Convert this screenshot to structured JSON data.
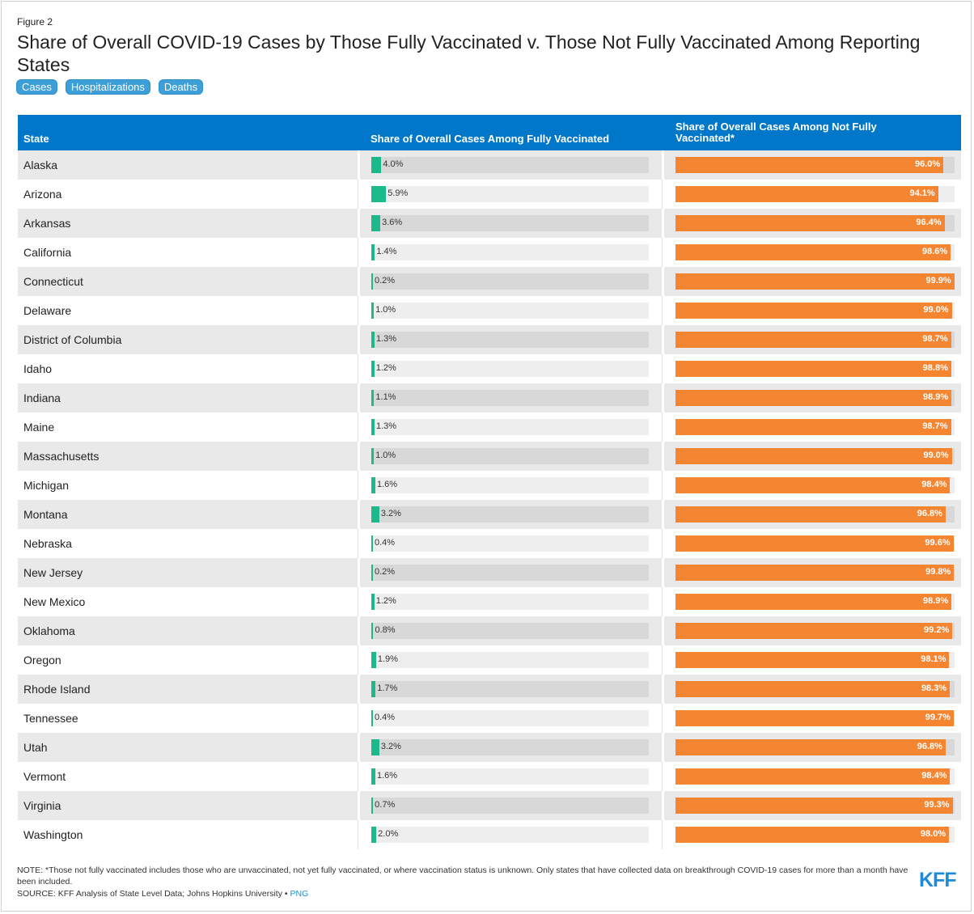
{
  "figure_label": "Figure 2",
  "title": "Share of Overall COVID-19 Cases by Those Fully Vaccinated v. Those Not Fully Vaccinated Among Reporting States",
  "tabs": [
    "Cases",
    "Hospitalizations",
    "Deaths"
  ],
  "columns": {
    "state": "State",
    "vaccinated": "Share of Overall Cases Among Fully Vaccinated",
    "not_vaccinated": "Share of Overall Cases Among Not Fully Vaccinated*"
  },
  "colors": {
    "header": "#0077c8",
    "vaccinated": "#1cb98a",
    "not_vaccinated": "#f58530",
    "tab": "#3c9fd8"
  },
  "chart_data": {
    "type": "table",
    "categories": [
      "Alaska",
      "Arizona",
      "Arkansas",
      "California",
      "Connecticut",
      "Delaware",
      "District of Columbia",
      "Idaho",
      "Indiana",
      "Maine",
      "Massachusetts",
      "Michigan",
      "Montana",
      "Nebraska",
      "New Jersey",
      "New Mexico",
      "Oklahoma",
      "Oregon",
      "Rhode Island",
      "Tennessee",
      "Utah",
      "Vermont",
      "Virginia",
      "Washington"
    ],
    "series": [
      {
        "name": "Share of Overall Cases Among Fully Vaccinated",
        "values": [
          4.0,
          5.9,
          3.6,
          1.4,
          0.2,
          1.0,
          1.3,
          1.2,
          1.1,
          1.3,
          1.0,
          1.6,
          3.2,
          0.4,
          0.2,
          1.2,
          0.8,
          1.9,
          1.7,
          0.4,
          3.2,
          1.6,
          0.7,
          2.0
        ]
      },
      {
        "name": "Share of Overall Cases Among Not Fully Vaccinated*",
        "values": [
          96.0,
          94.1,
          96.4,
          98.6,
          99.9,
          99.0,
          98.7,
          98.8,
          98.9,
          98.7,
          99.0,
          98.4,
          96.8,
          99.6,
          99.8,
          98.9,
          99.2,
          98.1,
          98.3,
          99.7,
          96.8,
          98.4,
          99.3,
          98.0
        ]
      }
    ],
    "value_suffix": "%",
    "xlim": [
      0,
      100
    ]
  },
  "note": "NOTE: *Those not fully vaccinated includes those who are unvaccinated, not yet fully vaccinated, or where vaccination status is unknown. Only states that have collected data on breakthrough COVID-19 cases for more than a month have been included.",
  "source": "SOURCE: KFF Analysis of State Level Data; Johns Hopkins University •",
  "png_link": "PNG",
  "logo_text": "KFF"
}
